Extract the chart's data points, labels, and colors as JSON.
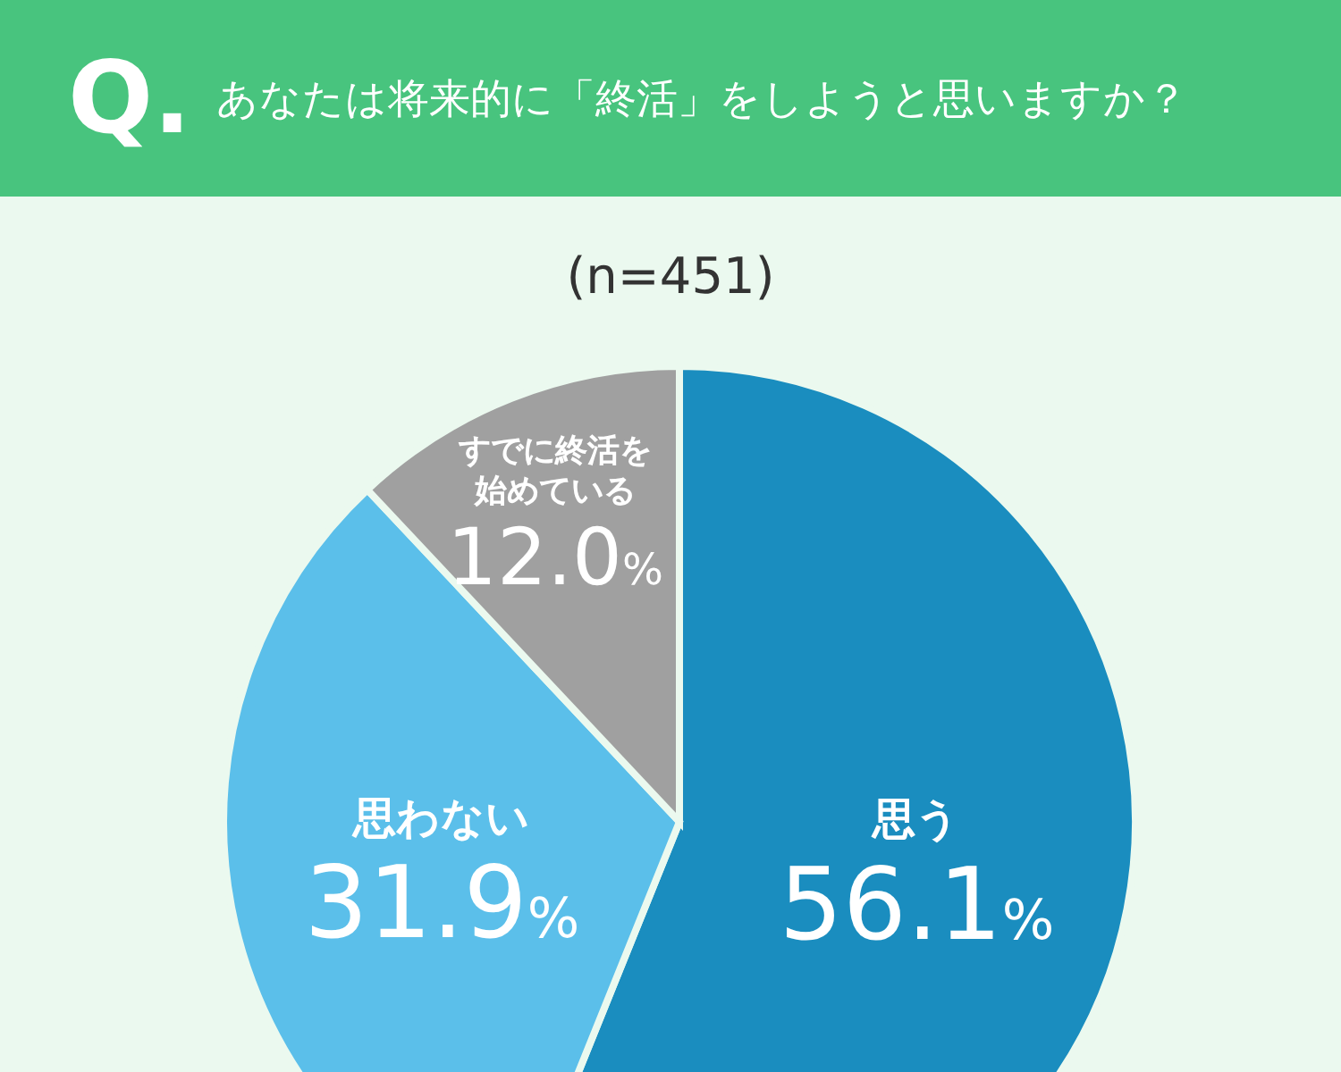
{
  "chart_data": {
    "type": "pie",
    "title": "あなたは将来的に「終活」をしようと思いますか？",
    "subtitle": "(n=451)",
    "annotations": [
      "Q."
    ],
    "categories": [
      "思う",
      "思わない",
      "すでに終活を始めている"
    ],
    "values": [
      56.1,
      31.9,
      12.0
    ],
    "value_labels": [
      "56.1%",
      "31.9%",
      "12.0%"
    ],
    "colors": [
      "#1a8dbf",
      "#5bbfea",
      "#a0a0a0"
    ]
  }
}
